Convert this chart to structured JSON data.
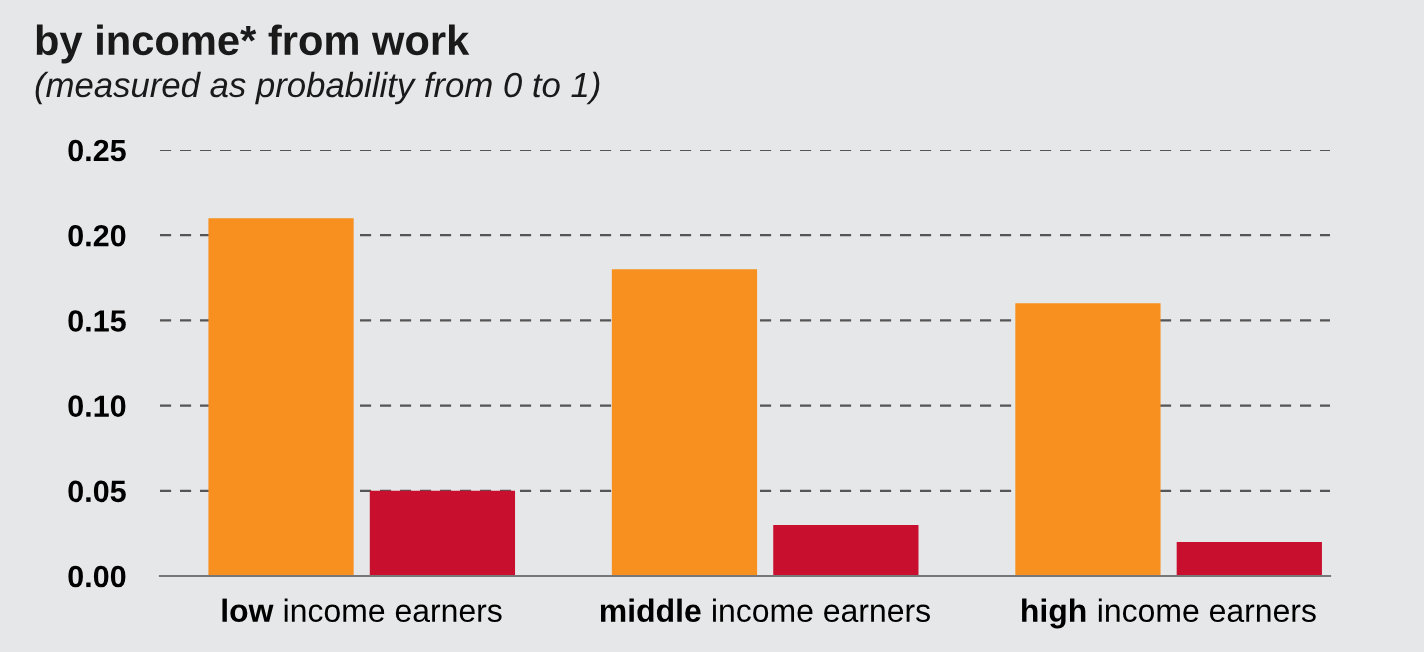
{
  "chart_data": {
    "type": "bar",
    "title": "by income* from work",
    "subtitle": "(measured as probability from 0 to 1)",
    "categories": [
      "low income earners",
      "middle income earners",
      "high income earners"
    ],
    "series": [
      {
        "color": "#f7901e",
        "values": [
          0.21,
          0.18,
          0.16
        ]
      },
      {
        "color": "#c8102e",
        "values": [
          0.05,
          0.03,
          0.02
        ]
      }
    ],
    "ylim": [
      0,
      0.25
    ],
    "yticks": [
      {
        "value": 0,
        "label": "0.00"
      },
      {
        "value": 0.05,
        "label": "0.05"
      },
      {
        "value": 0.1,
        "label": "0.10"
      },
      {
        "value": 0.15,
        "label": "0.15"
      },
      {
        "value": 0.2,
        "label": "0.20"
      },
      {
        "value": 0.25,
        "label": "0.25"
      }
    ],
    "grid": "y"
  }
}
